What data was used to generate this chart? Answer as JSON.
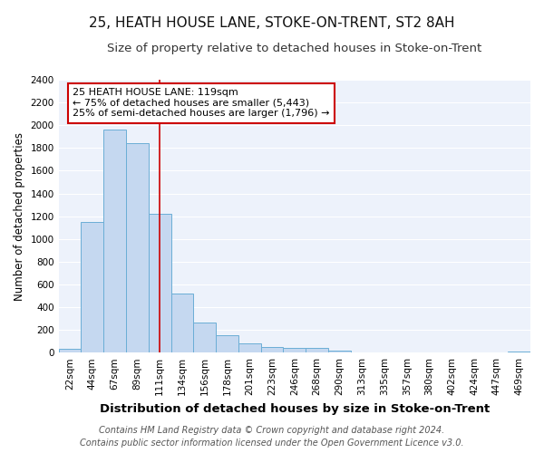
{
  "title": "25, HEATH HOUSE LANE, STOKE-ON-TRENT, ST2 8AH",
  "subtitle": "Size of property relative to detached houses in Stoke-on-Trent",
  "xlabel": "Distribution of detached houses by size in Stoke-on-Trent",
  "ylabel": "Number of detached properties",
  "categories": [
    "22sqm",
    "44sqm",
    "67sqm",
    "89sqm",
    "111sqm",
    "134sqm",
    "156sqm",
    "178sqm",
    "201sqm",
    "223sqm",
    "246sqm",
    "268sqm",
    "290sqm",
    "313sqm",
    "335sqm",
    "357sqm",
    "380sqm",
    "402sqm",
    "424sqm",
    "447sqm",
    "469sqm"
  ],
  "values": [
    30,
    1150,
    1960,
    1840,
    1220,
    520,
    265,
    150,
    80,
    50,
    42,
    38,
    15,
    5,
    2,
    1,
    0,
    0,
    0,
    0,
    8
  ],
  "bar_color": "#c5d8f0",
  "bar_edge_color": "#6baed6",
  "vline_x_index": 4,
  "vline_color": "#cc0000",
  "annotation_text": "25 HEATH HOUSE LANE: 119sqm\n← 75% of detached houses are smaller (5,443)\n25% of semi-detached houses are larger (1,796) →",
  "annotation_box_facecolor": "#ffffff",
  "annotation_box_edgecolor": "#cc0000",
  "ylim": [
    0,
    2400
  ],
  "yticks": [
    0,
    200,
    400,
    600,
    800,
    1000,
    1200,
    1400,
    1600,
    1800,
    2000,
    2200,
    2400
  ],
  "footer1": "Contains HM Land Registry data © Crown copyright and database right 2024.",
  "footer2": "Contains public sector information licensed under the Open Government Licence v3.0.",
  "plot_bg_color": "#edf2fb",
  "fig_bg_color": "#ffffff",
  "grid_color": "#ffffff",
  "title_fontsize": 11,
  "subtitle_fontsize": 9.5,
  "xlabel_fontsize": 9.5,
  "ylabel_fontsize": 8.5,
  "tick_fontsize": 7.5,
  "annot_fontsize": 8,
  "footer_fontsize": 7
}
